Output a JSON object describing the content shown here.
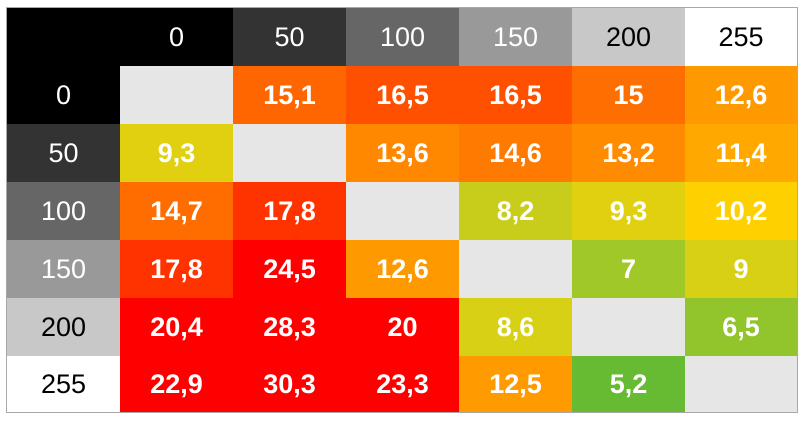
{
  "chart_data": {
    "type": "heatmap",
    "title": "",
    "xlabel": "",
    "ylabel": "",
    "x_categories": [
      "0",
      "50",
      "100",
      "150",
      "200",
      "255"
    ],
    "y_categories": [
      "0",
      "50",
      "100",
      "150",
      "200",
      "255"
    ],
    "header_colors": [
      "#000000",
      "#333333",
      "#666666",
      "#999999",
      "#c8c8c8",
      "#ffffff"
    ],
    "header_text_colors": [
      "#ffffff",
      "#ffffff",
      "#ffffff",
      "#ffffff",
      "#000000",
      "#000000"
    ],
    "diagonal_color": "#e6e6e6",
    "values": [
      [
        null,
        "15,1",
        "16,5",
        "16,5",
        "15",
        "12,6"
      ],
      [
        "9,3",
        null,
        "13,6",
        "14,6",
        "13,2",
        "11,4"
      ],
      [
        "14,7",
        "17,8",
        null,
        "8,2",
        "9,3",
        "10,2"
      ],
      [
        "17,8",
        "24,5",
        "12,6",
        null,
        "7",
        "9"
      ],
      [
        "20,4",
        "28,3",
        "20",
        "8,6",
        null,
        "6,5"
      ],
      [
        "22,9",
        "30,3",
        "23,3",
        "12,5",
        "5,2",
        null
      ]
    ],
    "cell_colors": [
      [
        "#e6e6e6",
        "#ff6600",
        "#ff5000",
        "#ff5000",
        "#ff6e00",
        "#ff9900"
      ],
      [
        "#e0d010",
        "#e6e6e6",
        "#ff8800",
        "#ff7a00",
        "#ff8c00",
        "#ffa800"
      ],
      [
        "#ff6c00",
        "#ff3300",
        "#e6e6e6",
        "#c8cc1a",
        "#e0d010",
        "#ffd000"
      ],
      [
        "#ff3300",
        "#ff0000",
        "#ff9900",
        "#e6e6e6",
        "#a0c828",
        "#d8d014"
      ],
      [
        "#ff0000",
        "#ff0000",
        "#ff0000",
        "#d8d014",
        "#e6e6e6",
        "#92c42c"
      ],
      [
        "#ff0000",
        "#ff0000",
        "#ff0000",
        "#ff9a00",
        "#66bb33",
        "#e6e6e6"
      ]
    ]
  }
}
